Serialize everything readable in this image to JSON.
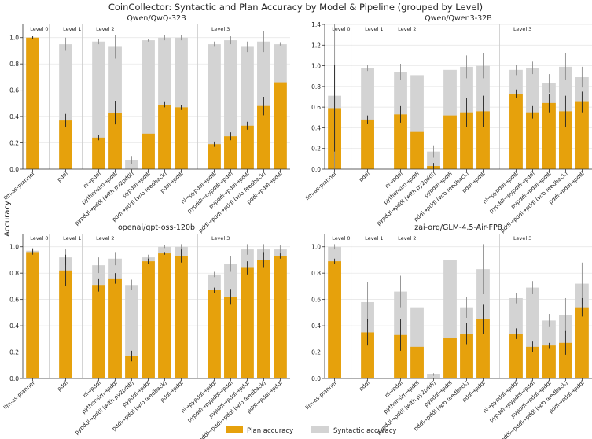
{
  "figure": {
    "title": "CoinCollector: Syntactic and Plan Accuracy by Model & Pipeline (grouped by Level)",
    "ylabel": "Accuracy",
    "legend": [
      {
        "label": "Plan accuracy",
        "color": "#e6a10c"
      },
      {
        "label": "Syntactic accuracy",
        "color": "#d3d3d3"
      }
    ],
    "colors": {
      "plan": "#e6a10c",
      "syntactic": "#d3d3d3"
    }
  },
  "chart_data": [
    {
      "type": "bar",
      "title": "Qwen/QwQ-32B",
      "ylim": [
        0,
        1.1
      ],
      "yticks": [
        0.0,
        0.2,
        0.4,
        0.6,
        0.8,
        1.0
      ],
      "ytick_labels": [
        "0.0",
        "0.2",
        "0.4",
        "0.6",
        "0.8",
        "1.0"
      ],
      "levels": [
        "Level 0",
        "Level 1",
        "Level 2",
        "Level 3"
      ],
      "categories": [
        "llm-as-planner",
        "pddl",
        "nl→pddl",
        "pythonsim→pddl",
        "pypddl→pddl (with py2pddl)",
        "pypddl→pddl",
        "pddl→pddl (w/o feedback)",
        "pddl→pddl",
        "nl→pypddl→pddl",
        "pypddl→pypddl→pddl",
        "pypddl→pddl→pddl",
        "pddl→pddl→pddl (w/o feedback)",
        "pddl→pddl→pddl"
      ],
      "category_levels": [
        0,
        1,
        2,
        2,
        2,
        2,
        2,
        2,
        3,
        3,
        3,
        3,
        3
      ],
      "series": [
        {
          "name": "Syntactic accuracy",
          "values": [
            1.0,
            0.95,
            0.97,
            0.93,
            0.07,
            0.98,
            1.0,
            1.0,
            0.95,
            0.98,
            0.93,
            0.97,
            0.95
          ],
          "err": [
            0.01,
            0.05,
            0.02,
            0.09,
            0.03,
            0.01,
            0.02,
            0.02,
            0.02,
            0.03,
            0.04,
            0.08,
            0.01
          ]
        },
        {
          "name": "Plan accuracy",
          "values": [
            1.0,
            0.37,
            0.24,
            0.43,
            0.0,
            0.27,
            0.49,
            0.47,
            0.19,
            0.25,
            0.33,
            0.48,
            0.66
          ],
          "err": [
            0.01,
            0.05,
            0.02,
            0.09,
            0.0,
            0.0,
            0.02,
            0.02,
            0.02,
            0.03,
            0.03,
            0.07,
            0.0
          ]
        }
      ]
    },
    {
      "type": "bar",
      "title": "Qwen/Qwen3-32B",
      "ylim": [
        0,
        1.4
      ],
      "yticks": [
        0.0,
        0.2,
        0.4,
        0.6,
        0.8,
        1.0,
        1.2,
        1.4
      ],
      "ytick_labels": [
        "0.0",
        "0.2",
        "0.4",
        "0.6",
        "0.8",
        "1.0",
        "1.2",
        "1.4"
      ],
      "levels": [
        "Level 0",
        "Level 1",
        "Level 2",
        "Level 3"
      ],
      "categories": [
        "llm-as-planner",
        "pddl",
        "nl→pddl",
        "pythonsim→pddl",
        "pypddl→pddl (with py2pddl)",
        "pypddl→pddl",
        "pddl→pddl (w/o feedback)",
        "pddl→pddl",
        "nl→pypddl→pddl",
        "pypddl→pypddl→pddl",
        "pypddl→pddl→pddl",
        "pddl→pddl→pddl (w/o feedback)",
        "pddl→pddl→pddl"
      ],
      "category_levels": [
        0,
        1,
        2,
        2,
        2,
        2,
        2,
        2,
        3,
        3,
        3,
        3,
        3
      ],
      "series": [
        {
          "name": "Syntactic accuracy",
          "values": [
            0.71,
            0.98,
            0.94,
            0.91,
            0.17,
            0.96,
            0.99,
            1.0,
            0.96,
            0.98,
            0.83,
            0.99,
            0.89
          ],
          "err": [
            0.71,
            0.03,
            0.08,
            0.08,
            0.06,
            0.08,
            0.11,
            0.12,
            0.05,
            0.06,
            0.09,
            0.13,
            0.1
          ]
        },
        {
          "name": "Plan accuracy",
          "values": [
            0.59,
            0.48,
            0.53,
            0.36,
            0.03,
            0.52,
            0.55,
            0.56,
            0.73,
            0.55,
            0.64,
            0.56,
            0.65
          ],
          "err": [
            0.42,
            0.04,
            0.08,
            0.05,
            0.03,
            0.09,
            0.14,
            0.15,
            0.04,
            0.06,
            0.09,
            0.15,
            0.1
          ]
        }
      ]
    },
    {
      "type": "bar",
      "title": "openai/gpt-oss-120b",
      "ylim": [
        0,
        1.1
      ],
      "yticks": [
        0.0,
        0.2,
        0.4,
        0.6,
        0.8,
        1.0
      ],
      "ytick_labels": [
        "0.0",
        "0.2",
        "0.4",
        "0.6",
        "0.8",
        "1.0"
      ],
      "levels": [
        "Level 0",
        "Level 1",
        "Level 2",
        "Level 3"
      ],
      "categories": [
        "llm-as-planner",
        "pddl",
        "nl→pddl",
        "pythonsim→pddl",
        "pypddl→pddl (with py2pddl)",
        "pypddl→pddl",
        "pddl→pddl (w/o feedback)",
        "pddl→pddl",
        "nl→pypddl→pddl",
        "pypddl→pypddl→pddl",
        "pypddl→pddl→pddl",
        "pddl→pddl→pddl (w/o feedback)",
        "pddl→pddl→pddl"
      ],
      "category_levels": [
        0,
        1,
        2,
        2,
        2,
        2,
        2,
        2,
        3,
        3,
        3,
        3,
        3
      ],
      "series": [
        {
          "name": "Syntactic accuracy",
          "values": [
            0.97,
            0.92,
            0.86,
            0.91,
            0.71,
            0.92,
            1.0,
            1.0,
            0.79,
            0.87,
            0.98,
            0.98,
            0.98
          ],
          "err": [
            0.02,
            0.06,
            0.06,
            0.05,
            0.04,
            0.02,
            0.01,
            0.02,
            0.02,
            0.06,
            0.04,
            0.04,
            0.03
          ]
        },
        {
          "name": "Plan accuracy",
          "values": [
            0.96,
            0.82,
            0.71,
            0.76,
            0.17,
            0.89,
            0.95,
            0.93,
            0.67,
            0.62,
            0.84,
            0.9,
            0.93
          ],
          "err": [
            0.02,
            0.12,
            0.05,
            0.04,
            0.04,
            0.02,
            0.01,
            0.05,
            0.02,
            0.06,
            0.05,
            0.06,
            0.02
          ]
        }
      ]
    },
    {
      "type": "bar",
      "title": "zai-org/GLM-4.5-Air-FP8",
      "ylim": [
        0,
        1.1
      ],
      "yticks": [
        0.0,
        0.2,
        0.4,
        0.6,
        0.8,
        1.0
      ],
      "ytick_labels": [
        "0.0",
        "0.2",
        "0.4",
        "0.6",
        "0.8",
        "1.0"
      ],
      "levels": [
        "Level 0",
        "Level 1",
        "Level 2",
        "Level 3"
      ],
      "categories": [
        "llm-as-planner",
        "pddl",
        "nl→pddl",
        "pythonsim→pddl",
        "pypddl→pddl (with py2pddl)",
        "pypddl→pddl",
        "pddl→pddl (w/o feedback)",
        "pddl→pddl",
        "nl→pypddl→pddl",
        "pypddl→pypddl→pddl",
        "pypddl→pddl→pddl",
        "pddl→pddl→pddl (w/o feedback)",
        "pddl→pddl→pddl"
      ],
      "category_levels": [
        0,
        1,
        2,
        2,
        2,
        2,
        2,
        2,
        3,
        3,
        3,
        3,
        3
      ],
      "series": [
        {
          "name": "Syntactic accuracy",
          "values": [
            1.0,
            0.58,
            0.66,
            0.54,
            0.03,
            0.9,
            0.54,
            0.83,
            0.61,
            0.69,
            0.44,
            0.48,
            0.72
          ],
          "err": [
            0.02,
            0.15,
            0.12,
            0.25,
            0.01,
            0.03,
            0.08,
            0.19,
            0.04,
            0.05,
            0.05,
            0.13,
            0.16
          ]
        },
        {
          "name": "Plan accuracy",
          "values": [
            0.89,
            0.35,
            0.33,
            0.24,
            0.0,
            0.31,
            0.34,
            0.45,
            0.34,
            0.24,
            0.25,
            0.27,
            0.54
          ],
          "err": [
            0.02,
            0.1,
            0.12,
            0.06,
            0.0,
            0.02,
            0.08,
            0.11,
            0.04,
            0.04,
            0.02,
            0.09,
            0.07
          ]
        }
      ]
    }
  ]
}
